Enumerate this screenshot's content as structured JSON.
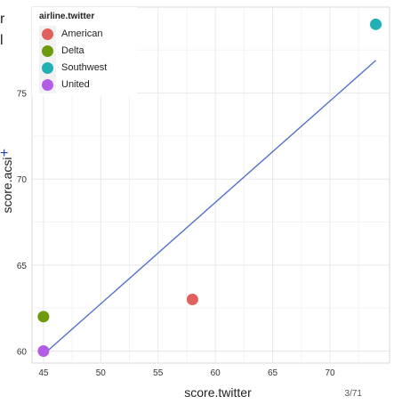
{
  "edge_text": {
    "line1": "r",
    "line2": "l",
    "line3": "+"
  },
  "page_number": "3/71",
  "chart_data": {
    "type": "scatter",
    "xlabel": "score.twitter",
    "ylabel": "score.acsi",
    "xlim": [
      44,
      75.2
    ],
    "ylim": [
      59.3,
      80
    ],
    "x_ticks": [
      45,
      50,
      55,
      60,
      65,
      70
    ],
    "y_ticks": [
      60,
      65,
      70,
      75
    ],
    "grid": true,
    "legend": {
      "title": "airline.twitter",
      "placement": "top-left"
    },
    "points": [
      {
        "name": "American",
        "x": 58,
        "y": 63,
        "color": "#e0605c"
      },
      {
        "name": "Delta",
        "x": 45,
        "y": 62,
        "color": "#6e9a0e"
      },
      {
        "name": "Southwest",
        "x": 74,
        "y": 79,
        "color": "#22b0b4"
      },
      {
        "name": "United",
        "x": 45,
        "y": 60,
        "color": "#b35ce6"
      }
    ],
    "fit_line": {
      "color": "#5470cc",
      "x": [
        45,
        74
      ],
      "y": [
        59.8,
        76.9
      ]
    }
  }
}
